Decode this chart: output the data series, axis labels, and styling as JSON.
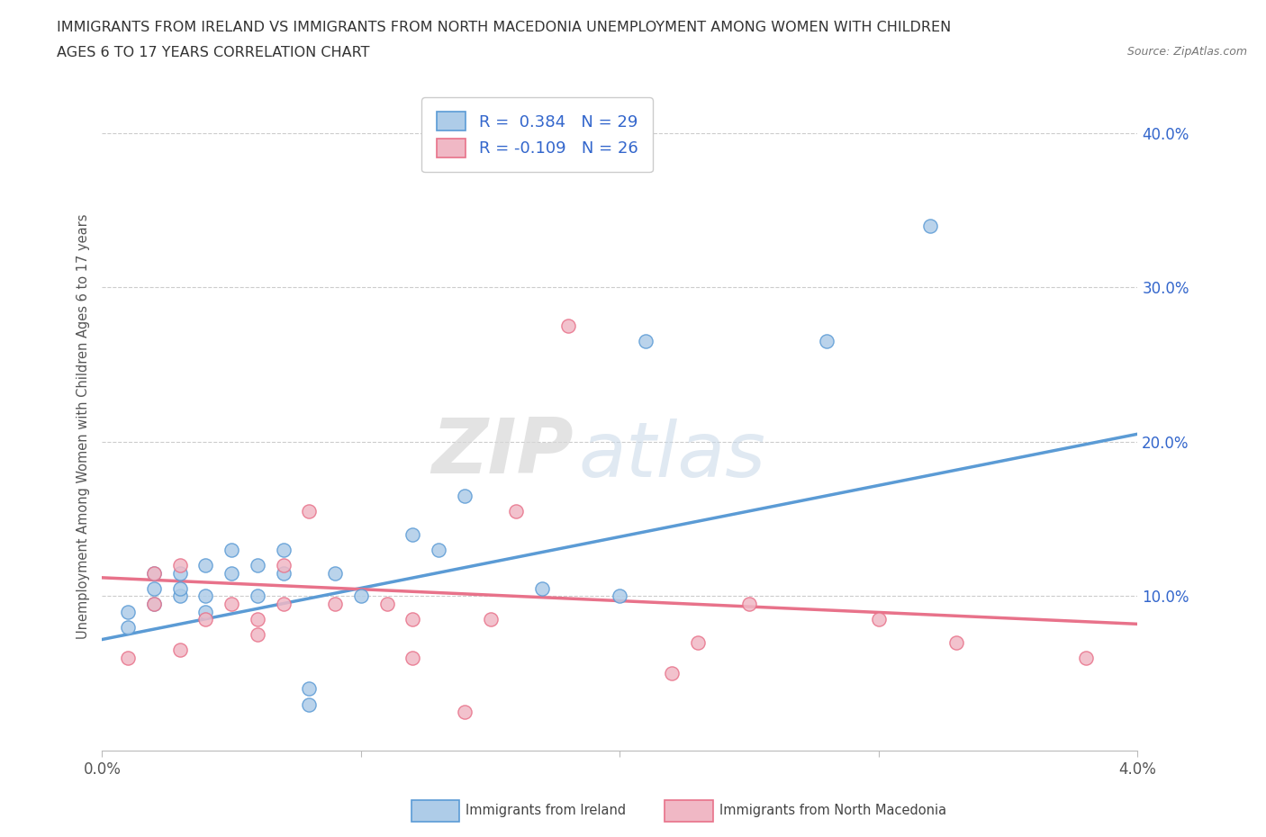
{
  "title_line1": "IMMIGRANTS FROM IRELAND VS IMMIGRANTS FROM NORTH MACEDONIA UNEMPLOYMENT AMONG WOMEN WITH CHILDREN",
  "title_line2": "AGES 6 TO 17 YEARS CORRELATION CHART",
  "source_text": "Source: ZipAtlas.com",
  "ylabel": "Unemployment Among Women with Children Ages 6 to 17 years",
  "xlim": [
    0.0,
    0.04
  ],
  "ylim": [
    0.0,
    0.42
  ],
  "xticks": [
    0.0,
    0.01,
    0.02,
    0.03,
    0.04
  ],
  "xtick_labels": [
    "0.0%",
    "",
    "",
    "",
    "4.0%"
  ],
  "yticks": [
    0.1,
    0.2,
    0.3,
    0.4
  ],
  "ytick_labels": [
    "10.0%",
    "20.0%",
    "30.0%",
    "40.0%"
  ],
  "ireland_color": "#5b9bd5",
  "ireland_color_light": "#aecce8",
  "north_mac_color": "#e8728a",
  "north_mac_color_light": "#f0b8c5",
  "ireland_R": 0.384,
  "ireland_N": 29,
  "north_mac_R": -0.109,
  "north_mac_N": 26,
  "watermark_zip": "ZIP",
  "watermark_atlas": "atlas",
  "ireland_scatter_x": [
    0.001,
    0.001,
    0.002,
    0.002,
    0.002,
    0.003,
    0.003,
    0.003,
    0.004,
    0.004,
    0.004,
    0.005,
    0.005,
    0.006,
    0.006,
    0.007,
    0.007,
    0.008,
    0.008,
    0.009,
    0.01,
    0.012,
    0.013,
    0.014,
    0.017,
    0.02,
    0.021,
    0.028,
    0.032
  ],
  "ireland_scatter_y": [
    0.08,
    0.09,
    0.095,
    0.105,
    0.115,
    0.1,
    0.105,
    0.115,
    0.09,
    0.1,
    0.12,
    0.115,
    0.13,
    0.1,
    0.12,
    0.13,
    0.115,
    0.04,
    0.03,
    0.115,
    0.1,
    0.14,
    0.13,
    0.165,
    0.105,
    0.1,
    0.265,
    0.265,
    0.34
  ],
  "north_mac_scatter_x": [
    0.001,
    0.002,
    0.002,
    0.003,
    0.003,
    0.004,
    0.005,
    0.006,
    0.006,
    0.007,
    0.007,
    0.008,
    0.009,
    0.011,
    0.012,
    0.012,
    0.014,
    0.015,
    0.016,
    0.018,
    0.022,
    0.023,
    0.025,
    0.03,
    0.033,
    0.038
  ],
  "north_mac_scatter_y": [
    0.06,
    0.095,
    0.115,
    0.065,
    0.12,
    0.085,
    0.095,
    0.075,
    0.085,
    0.095,
    0.12,
    0.155,
    0.095,
    0.095,
    0.06,
    0.085,
    0.025,
    0.085,
    0.155,
    0.275,
    0.05,
    0.07,
    0.095,
    0.085,
    0.07,
    0.06
  ],
  "ireland_line_x": [
    0.0,
    0.04
  ],
  "ireland_line_y": [
    0.072,
    0.205
  ],
  "north_mac_line_x": [
    0.0,
    0.04
  ],
  "north_mac_line_y": [
    0.112,
    0.082
  ],
  "background_color": "#ffffff",
  "grid_color": "#cccccc",
  "right_axis_color": "#3366cc"
}
